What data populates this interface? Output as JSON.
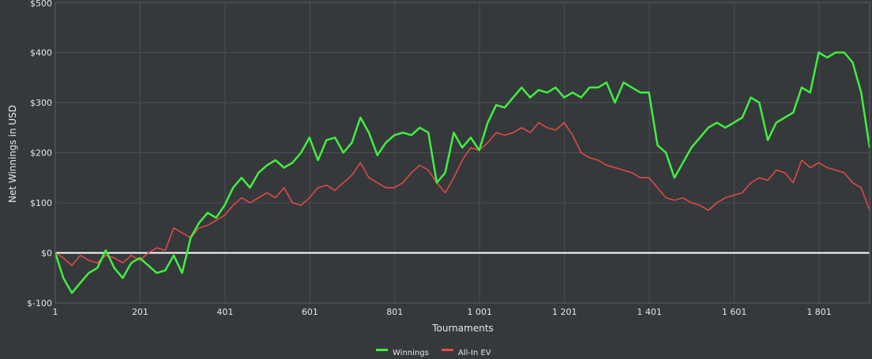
{
  "chart_data": {
    "type": "line",
    "title": "",
    "xlabel": "Tournaments",
    "ylabel": "Net Winnings in USD",
    "xlim": [
      1,
      1920
    ],
    "ylim": [
      -100,
      500
    ],
    "x_ticks": [
      1,
      201,
      401,
      601,
      801,
      1001,
      1201,
      1401,
      1601,
      1801
    ],
    "x_tick_labels": [
      "1",
      "201",
      "401",
      "601",
      "801",
      "1 001",
      "1 201",
      "1 401",
      "1 601",
      "1 801"
    ],
    "y_ticks": [
      -100,
      0,
      100,
      200,
      300,
      400,
      500
    ],
    "y_tick_labels": [
      "$-100",
      "$0",
      "$100",
      "$200",
      "$300",
      "$400",
      "$500"
    ],
    "grid": true,
    "zero_line": true,
    "legend_position": "bottom-center",
    "colors": {
      "background": "#36393c",
      "grid": "#4b4f53",
      "zero_line": "#ffffff",
      "axis_text": "#e6e6e6"
    },
    "series": [
      {
        "name": "Winnings",
        "color": "#3ff03f",
        "x": [
          1,
          20,
          40,
          60,
          80,
          100,
          120,
          140,
          160,
          180,
          200,
          220,
          240,
          260,
          280,
          300,
          320,
          340,
          360,
          380,
          400,
          420,
          440,
          460,
          480,
          500,
          520,
          540,
          560,
          580,
          600,
          620,
          640,
          660,
          680,
          700,
          720,
          740,
          760,
          780,
          800,
          820,
          840,
          860,
          880,
          900,
          920,
          940,
          960,
          980,
          1000,
          1020,
          1040,
          1060,
          1080,
          1100,
          1120,
          1140,
          1160,
          1180,
          1200,
          1220,
          1240,
          1260,
          1280,
          1300,
          1320,
          1340,
          1360,
          1380,
          1400,
          1420,
          1440,
          1460,
          1480,
          1500,
          1520,
          1540,
          1560,
          1580,
          1600,
          1620,
          1640,
          1660,
          1680,
          1700,
          1720,
          1740,
          1760,
          1780,
          1800,
          1820,
          1840,
          1860,
          1880,
          1900,
          1920
        ],
        "y": [
          0,
          -50,
          -80,
          -60,
          -40,
          -30,
          5,
          -30,
          -50,
          -20,
          -10,
          -25,
          -40,
          -35,
          -5,
          -40,
          30,
          60,
          80,
          70,
          95,
          130,
          150,
          130,
          160,
          175,
          185,
          170,
          180,
          200,
          230,
          185,
          225,
          230,
          200,
          220,
          270,
          240,
          195,
          220,
          235,
          240,
          235,
          250,
          240,
          140,
          160,
          240,
          210,
          230,
          205,
          260,
          295,
          290,
          310,
          330,
          310,
          325,
          320,
          330,
          310,
          320,
          310,
          330,
          330,
          340,
          300,
          340,
          330,
          320,
          320,
          215,
          200,
          150,
          180,
          210,
          230,
          250,
          260,
          250,
          260,
          270,
          310,
          300,
          225,
          260,
          270,
          280,
          330,
          320,
          400,
          390,
          400,
          400,
          380,
          320,
          210
        ]
      },
      {
        "name": "All-In EV",
        "color": "#e84a45",
        "x": [
          1,
          20,
          40,
          60,
          80,
          100,
          120,
          140,
          160,
          180,
          200,
          220,
          240,
          260,
          280,
          300,
          320,
          340,
          360,
          380,
          400,
          420,
          440,
          460,
          480,
          500,
          520,
          540,
          560,
          580,
          600,
          620,
          640,
          660,
          680,
          700,
          720,
          740,
          760,
          780,
          800,
          820,
          840,
          860,
          880,
          900,
          920,
          940,
          960,
          980,
          1000,
          1020,
          1040,
          1060,
          1080,
          1100,
          1120,
          1140,
          1160,
          1180,
          1200,
          1220,
          1240,
          1260,
          1280,
          1300,
          1320,
          1340,
          1360,
          1380,
          1400,
          1420,
          1440,
          1460,
          1480,
          1500,
          1520,
          1540,
          1560,
          1580,
          1600,
          1620,
          1640,
          1660,
          1680,
          1700,
          1720,
          1740,
          1760,
          1780,
          1800,
          1820,
          1840,
          1860,
          1880,
          1900,
          1920
        ],
        "y": [
          0,
          -10,
          -25,
          -5,
          -15,
          -20,
          -5,
          -10,
          -20,
          -5,
          -15,
          0,
          10,
          5,
          50,
          40,
          30,
          50,
          55,
          65,
          75,
          95,
          110,
          100,
          110,
          120,
          110,
          130,
          100,
          95,
          110,
          130,
          135,
          125,
          140,
          155,
          180,
          150,
          140,
          130,
          130,
          140,
          160,
          175,
          165,
          140,
          120,
          150,
          185,
          210,
          205,
          220,
          240,
          235,
          240,
          250,
          240,
          260,
          250,
          245,
          260,
          235,
          200,
          190,
          185,
          175,
          170,
          165,
          160,
          150,
          150,
          130,
          110,
          105,
          110,
          100,
          95,
          85,
          100,
          110,
          115,
          120,
          140,
          150,
          145,
          165,
          160,
          140,
          185,
          170,
          180,
          170,
          165,
          160,
          140,
          130,
          85
        ]
      }
    ]
  }
}
